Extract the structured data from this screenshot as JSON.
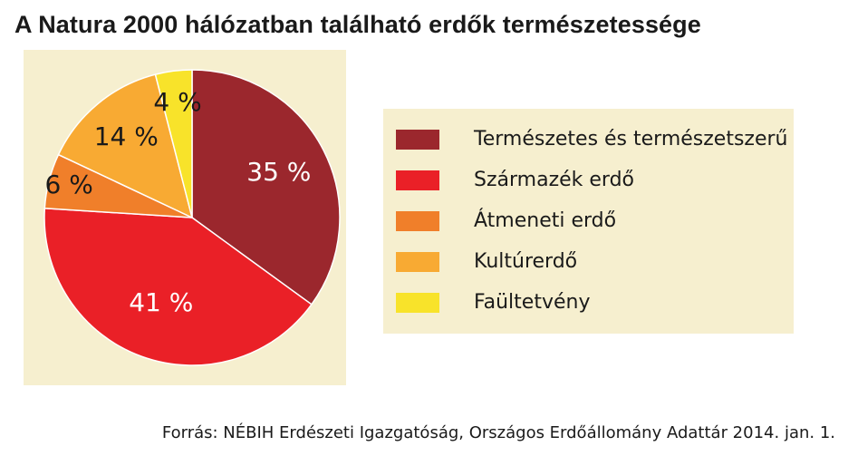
{
  "title": "A Natura 2000 hálózatban található erdők természetessége",
  "source": "Forrás: NÉBIH Erdészeti Igazgatóság, Országos Erdőállomány Adattár 2014. jan. 1.",
  "chart_data": {
    "type": "pie",
    "title": "A Natura 2000 hálózatban található erdők természetessége",
    "legend_placement": "right",
    "slices": [
      {
        "name": "Természetes és természetszerű",
        "value": 35,
        "label": "35 %",
        "color": "#9b272d",
        "label_color": "#ffffff"
      },
      {
        "name": "Származék erdő",
        "value": 41,
        "label": "41 %",
        "color": "#ea2027",
        "label_color": "#ffffff"
      },
      {
        "name": "Átmeneti erdő",
        "value": 6,
        "label": "6 %",
        "color": "#f07f2a",
        "label_color": "#1a1a1a"
      },
      {
        "name": "Kultúrerdő",
        "value": 14,
        "label": "14 %",
        "color": "#f8aa33",
        "label_color": "#1a1a1a"
      },
      {
        "name": "Faültetvény",
        "value": 4,
        "label": "4 %",
        "color": "#f8e32a",
        "label_color": "#1a1a1a"
      }
    ]
  }
}
